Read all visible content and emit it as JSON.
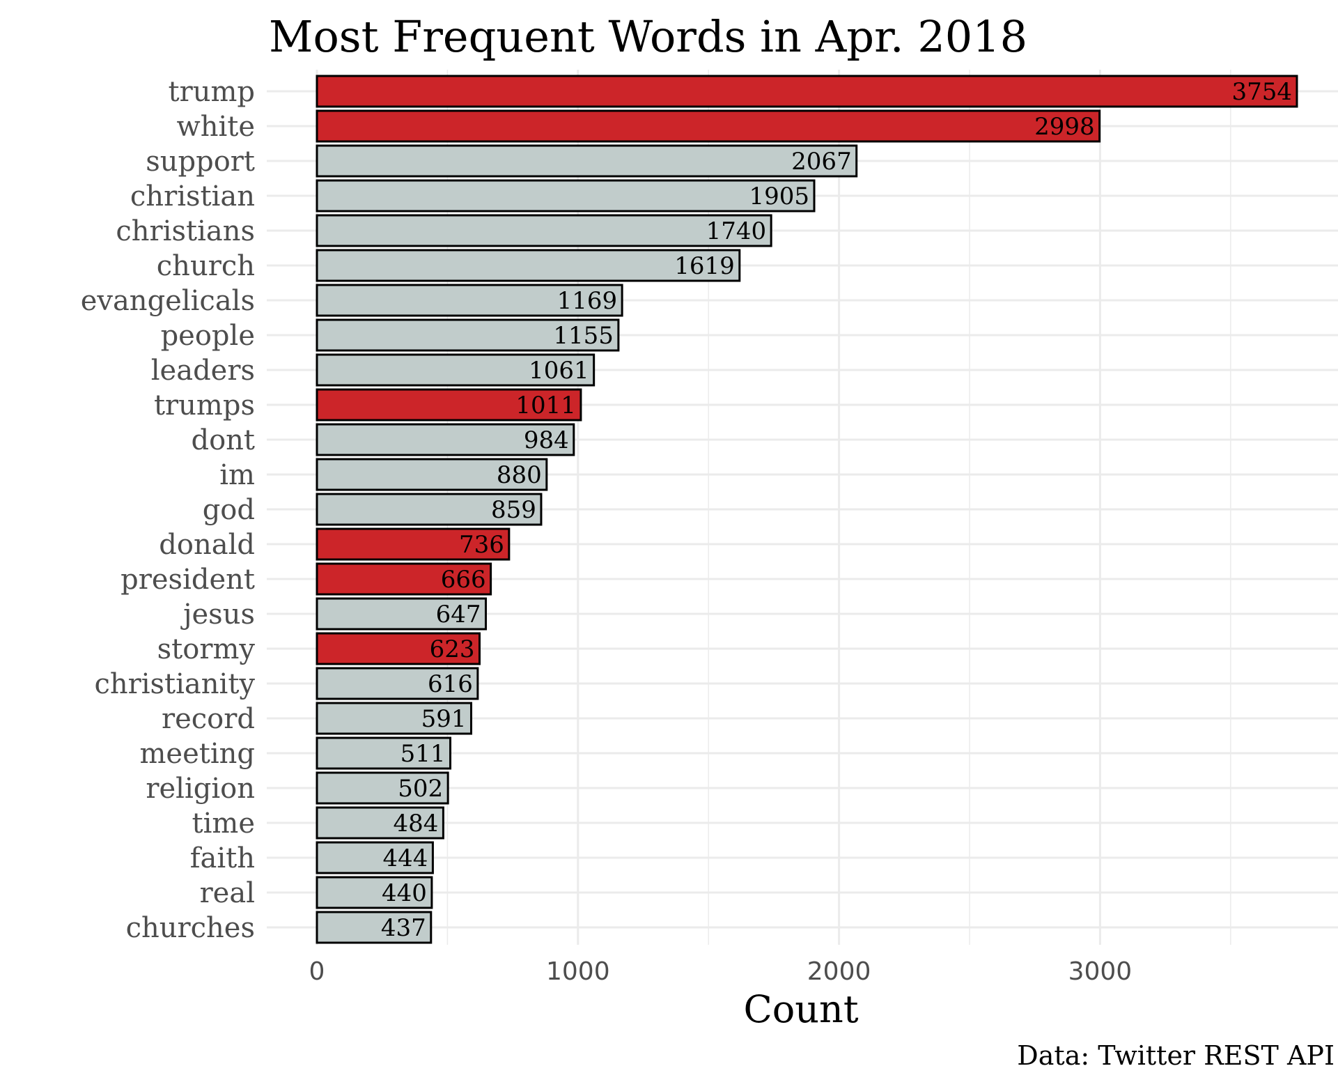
{
  "chart_data": {
    "type": "bar",
    "orientation": "horizontal",
    "title": "Most Frequent Words in Apr. 2018",
    "xlabel": "Count",
    "ylabel": "",
    "caption": "Data: Twitter REST API",
    "xlim": [
      0,
      3940
    ],
    "x_ticks": [
      "0",
      "1000",
      "2000",
      "3000"
    ],
    "x_tick_values": [
      0,
      1000,
      2000,
      3000
    ],
    "grid": true,
    "legend": "none",
    "colors": {
      "highlight": "#cc2529",
      "default": "#c1cccb",
      "outline": "#000000",
      "grid": "#ebebeb"
    },
    "categories": [
      "trump",
      "white",
      "support",
      "christian",
      "christians",
      "church",
      "evangelicals",
      "people",
      "leaders",
      "trumps",
      "dont",
      "im",
      "god",
      "donald",
      "president",
      "jesus",
      "stormy",
      "christianity",
      "record",
      "meeting",
      "religion",
      "time",
      "faith",
      "real",
      "churches"
    ],
    "values": [
      3754,
      2998,
      2067,
      1905,
      1740,
      1619,
      1169,
      1155,
      1061,
      1011,
      984,
      880,
      859,
      736,
      666,
      647,
      623,
      616,
      591,
      511,
      502,
      484,
      444,
      440,
      437
    ],
    "value_labels": [
      "3754",
      "2998",
      "2067",
      "1905",
      "1740",
      "1619",
      "1169",
      "1155",
      "1061",
      "1011",
      "984",
      "880",
      "859",
      "736",
      "666",
      "647",
      "623",
      "616",
      "591",
      "511",
      "502",
      "484",
      "444",
      "440",
      "437"
    ],
    "highlighted": [
      true,
      true,
      false,
      false,
      false,
      false,
      false,
      false,
      false,
      true,
      false,
      false,
      false,
      true,
      true,
      false,
      true,
      false,
      false,
      false,
      false,
      false,
      false,
      false,
      false
    ]
  }
}
